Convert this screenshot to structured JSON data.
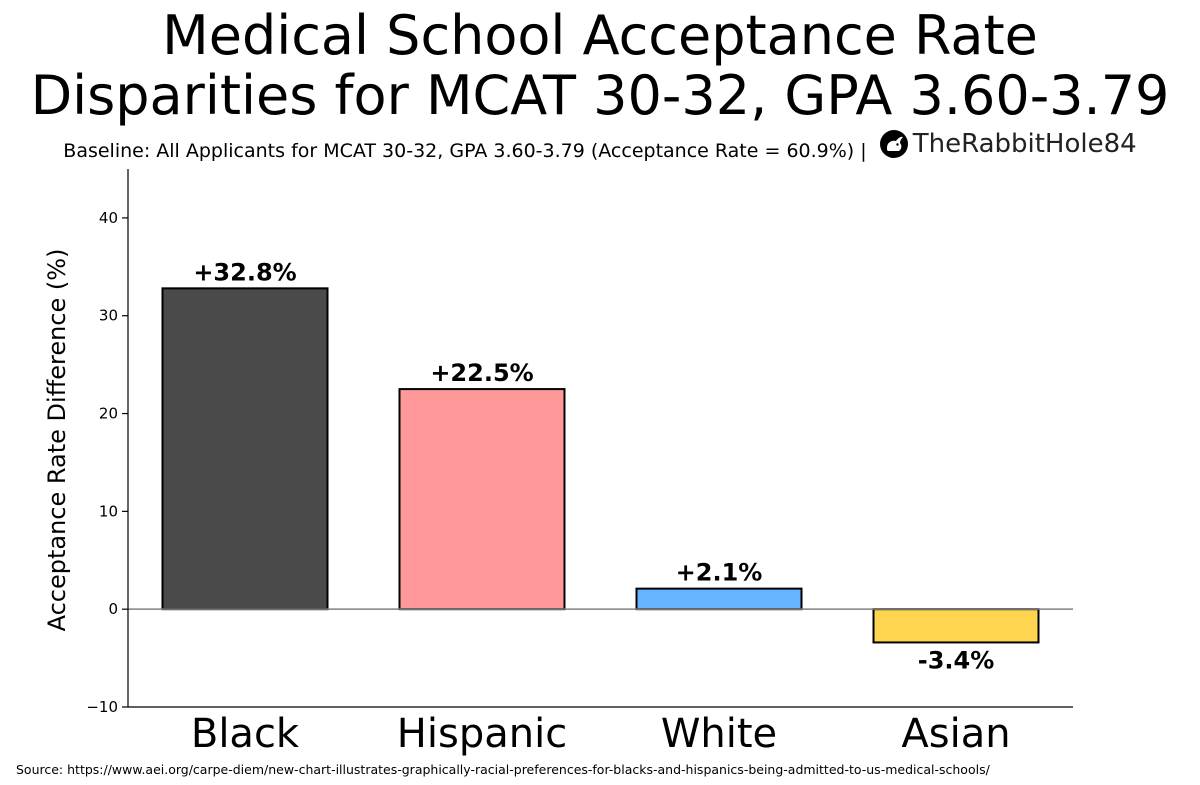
{
  "title": {
    "line1": "Medical School Acceptance Rate",
    "line2": "Disparities for MCAT 30-32, GPA 3.60-3.79"
  },
  "subtitle": {
    "text": "Baseline: All Applicants for MCAT 30-32, GPA 3.60-3.79 (Acceptance Rate = 60.9%) |",
    "brand": "TheRabbitHole84",
    "brand_icon": "rabbit-logo-icon"
  },
  "source": "Source: https://www.aei.org/carpe-diem/new-chart-illustrates-graphically-racial-preferences-for-blacks-and-hispanics-being-admitted-to-us-medical-schools/",
  "chart_data": {
    "type": "bar",
    "title": "Medical School Acceptance Rate Disparities for MCAT 30-32, GPA 3.60-3.79",
    "xlabel": "",
    "ylabel": "Acceptance Rate Difference (%)",
    "categories": [
      "Black",
      "Hispanic",
      "White",
      "Asian"
    ],
    "values": [
      32.8,
      22.5,
      2.1,
      -3.4
    ],
    "data_labels": [
      "+32.8%",
      "+22.5%",
      "+2.1%",
      "-3.4%"
    ],
    "colors": [
      "#4a4a4a",
      "#ff9999",
      "#66b3ff",
      "#ffd54f"
    ],
    "ylim": [
      -10,
      45
    ],
    "yticks": [
      -10,
      0,
      10,
      20,
      30,
      40
    ],
    "ytick_labels": [
      "−10",
      "0",
      "10",
      "20",
      "30",
      "40"
    ],
    "baseline_line": 0,
    "grid": false,
    "legend": "none"
  }
}
